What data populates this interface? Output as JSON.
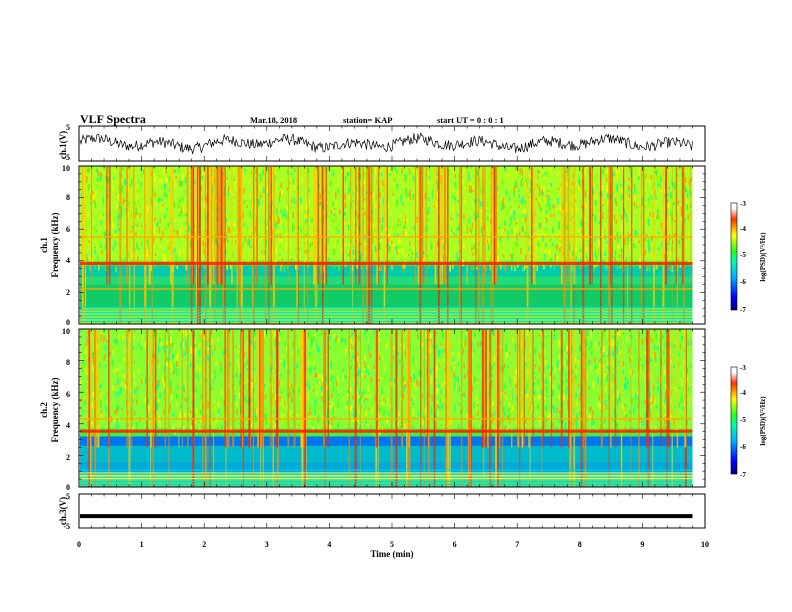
{
  "header": {
    "title": "VLF Spectra",
    "date": "Mar.18, 2018",
    "station": "station= KAP",
    "start": "start  UT =   0 : 0  : 1"
  },
  "chart_data": [
    {
      "type": "line",
      "name": "ch1-waveform",
      "ylabel": "ch.1(V)",
      "ylim": [
        -5,
        5
      ],
      "yticks": [
        "5",
        "-5"
      ],
      "color": "#000000"
    },
    {
      "type": "heatmap",
      "name": "ch1-spectrogram",
      "ylabel": [
        "ch.1",
        "Frequency  (kHz)"
      ],
      "ylim": [
        0,
        10
      ],
      "yticks": [
        "0",
        "2",
        "4",
        "6",
        "8",
        "10"
      ],
      "colorbar": {
        "label": "log(PSD)(V²/Hz)",
        "range": [
          -7,
          -3
        ],
        "ticks": [
          "-3",
          "-4",
          "-5",
          "-6",
          "-7"
        ]
      },
      "bands_khz": [
        3.8,
        2.2,
        5.5
      ]
    },
    {
      "type": "heatmap",
      "name": "ch2-spectrogram",
      "ylabel": [
        "ch.2",
        "Frequency  (kHz)"
      ],
      "ylim": [
        0,
        10
      ],
      "yticks": [
        "0",
        "2",
        "4",
        "6",
        "8",
        "10"
      ],
      "colorbar": {
        "label": "log(PSD)(V²/Hz)",
        "range": [
          -7,
          -3
        ],
        "ticks": [
          "-3",
          "-4",
          "-5",
          "-6",
          "-7"
        ]
      },
      "bands_khz": [
        3.5,
        4.3
      ]
    },
    {
      "type": "line",
      "name": "ch3-waveform",
      "ylabel": "ch.3(V)",
      "ylim": [
        -5,
        5
      ],
      "yticks": [
        "5",
        "-5"
      ],
      "value": -1.5,
      "color": "#000000"
    }
  ],
  "xaxis": {
    "label": "Time  (min)",
    "range": [
      0,
      10
    ],
    "ticks": [
      "0",
      "1",
      "2",
      "3",
      "4",
      "5",
      "6",
      "7",
      "8",
      "9",
      "10"
    ],
    "data_end": 9.8
  },
  "colorbar": {
    "label": "log(PSD)(V²/Hz)"
  }
}
